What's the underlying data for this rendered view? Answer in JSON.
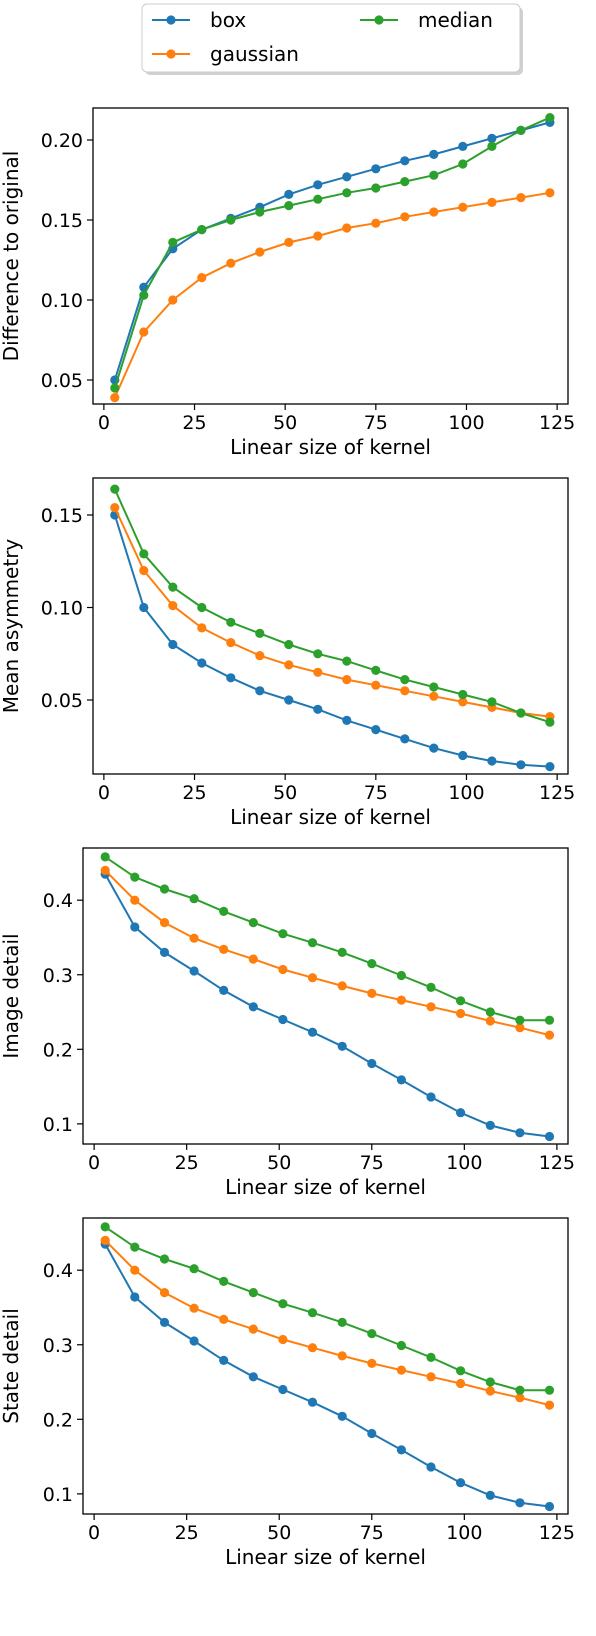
{
  "legend": {
    "placement": "top-center",
    "entries": [
      "box",
      "gaussian",
      "median"
    ]
  },
  "colors": {
    "box": "#1f77b4",
    "gaussian": "#ff7f0e",
    "median": "#2ca02c"
  },
  "chart_data": [
    {
      "type": "line",
      "xlabel": "Linear size of kernel",
      "ylabel": "Difference to original",
      "xlim": [
        -3,
        128
      ],
      "ylim": [
        0.035,
        0.22
      ],
      "xticks": [
        0,
        25,
        50,
        75,
        100,
        125
      ],
      "yticks": [
        0.05,
        0.1,
        0.15,
        0.2
      ],
      "ytick_labels": [
        "0.05",
        "0.10",
        "0.15",
        "0.20"
      ],
      "x": [
        3,
        11,
        19,
        27,
        35,
        43,
        51,
        59,
        67,
        75,
        83,
        91,
        99,
        107,
        115,
        123
      ],
      "series": [
        {
          "name": "box",
          "values": [
            0.05,
            0.108,
            0.132,
            0.144,
            0.151,
            0.158,
            0.166,
            0.172,
            0.177,
            0.182,
            0.187,
            0.191,
            0.196,
            0.201,
            0.206,
            0.211
          ]
        },
        {
          "name": "gaussian",
          "values": [
            0.039,
            0.08,
            0.1,
            0.114,
            0.123,
            0.13,
            0.136,
            0.14,
            0.145,
            0.148,
            0.152,
            0.155,
            0.158,
            0.161,
            0.164,
            0.167
          ]
        },
        {
          "name": "median",
          "values": [
            0.045,
            0.103,
            0.136,
            0.144,
            0.15,
            0.155,
            0.159,
            0.163,
            0.167,
            0.17,
            0.174,
            0.178,
            0.185,
            0.196,
            0.206,
            0.214
          ]
        }
      ],
      "grid": false
    },
    {
      "type": "line",
      "xlabel": "Linear size of kernel",
      "ylabel": "Mean asymmetry",
      "xlim": [
        -3,
        128
      ],
      "ylim": [
        0.01,
        0.17
      ],
      "xticks": [
        0,
        25,
        50,
        75,
        100,
        125
      ],
      "yticks": [
        0.05,
        0.1,
        0.15
      ],
      "ytick_labels": [
        "0.05",
        "0.10",
        "0.15"
      ],
      "x": [
        3,
        11,
        19,
        27,
        35,
        43,
        51,
        59,
        67,
        75,
        83,
        91,
        99,
        107,
        115,
        123
      ],
      "series": [
        {
          "name": "box",
          "values": [
            0.15,
            0.1,
            0.08,
            0.07,
            0.062,
            0.055,
            0.05,
            0.045,
            0.039,
            0.034,
            0.029,
            0.024,
            0.02,
            0.017,
            0.015,
            0.014
          ]
        },
        {
          "name": "gaussian",
          "values": [
            0.154,
            0.12,
            0.101,
            0.089,
            0.081,
            0.074,
            0.069,
            0.065,
            0.061,
            0.058,
            0.055,
            0.052,
            0.049,
            0.046,
            0.043,
            0.041
          ]
        },
        {
          "name": "median",
          "values": [
            0.164,
            0.129,
            0.111,
            0.1,
            0.092,
            0.086,
            0.08,
            0.075,
            0.071,
            0.066,
            0.061,
            0.057,
            0.053,
            0.049,
            0.043,
            0.038
          ]
        }
      ],
      "grid": false
    },
    {
      "type": "line",
      "xlabel": "Linear size of kernel",
      "ylabel": "Image detail",
      "xlim": [
        -3,
        128
      ],
      "ylim": [
        0.073,
        0.47
      ],
      "xticks": [
        0,
        25,
        50,
        75,
        100,
        125
      ],
      "yticks": [
        0.1,
        0.2,
        0.3,
        0.4
      ],
      "ytick_labels": [
        "0.1",
        "0.2",
        "0.3",
        "0.4"
      ],
      "x": [
        3,
        11,
        19,
        27,
        35,
        43,
        51,
        59,
        67,
        75,
        83,
        91,
        99,
        107,
        115,
        123
      ],
      "series": [
        {
          "name": "box",
          "values": [
            0.435,
            0.364,
            0.33,
            0.305,
            0.279,
            0.257,
            0.24,
            0.223,
            0.204,
            0.181,
            0.159,
            0.136,
            0.115,
            0.098,
            0.088,
            0.083
          ]
        },
        {
          "name": "gaussian",
          "values": [
            0.44,
            0.4,
            0.37,
            0.349,
            0.334,
            0.321,
            0.307,
            0.296,
            0.285,
            0.275,
            0.266,
            0.257,
            0.248,
            0.238,
            0.229,
            0.219
          ]
        },
        {
          "name": "median",
          "values": [
            0.458,
            0.431,
            0.415,
            0.402,
            0.385,
            0.37,
            0.355,
            0.343,
            0.33,
            0.315,
            0.299,
            0.283,
            0.265,
            0.25,
            0.239,
            0.239
          ]
        }
      ],
      "grid": false
    },
    {
      "type": "line",
      "xlabel": "Linear size of kernel",
      "ylabel": "State detail",
      "xlim": [
        -3,
        128
      ],
      "ylim": [
        0.073,
        0.47
      ],
      "xticks": [
        0,
        25,
        50,
        75,
        100,
        125
      ],
      "yticks": [
        0.1,
        0.2,
        0.3,
        0.4
      ],
      "ytick_labels": [
        "0.1",
        "0.2",
        "0.3",
        "0.4"
      ],
      "x": [
        3,
        11,
        19,
        27,
        35,
        43,
        51,
        59,
        67,
        75,
        83,
        91,
        99,
        107,
        115,
        123
      ],
      "series": [
        {
          "name": "box",
          "values": [
            0.435,
            0.364,
            0.33,
            0.305,
            0.279,
            0.257,
            0.24,
            0.223,
            0.204,
            0.181,
            0.159,
            0.136,
            0.115,
            0.098,
            0.088,
            0.083
          ]
        },
        {
          "name": "gaussian",
          "values": [
            0.44,
            0.4,
            0.37,
            0.349,
            0.334,
            0.321,
            0.307,
            0.296,
            0.285,
            0.275,
            0.266,
            0.257,
            0.248,
            0.238,
            0.229,
            0.219
          ]
        },
        {
          "name": "median",
          "values": [
            0.458,
            0.431,
            0.415,
            0.402,
            0.385,
            0.37,
            0.355,
            0.343,
            0.33,
            0.315,
            0.299,
            0.283,
            0.265,
            0.25,
            0.239,
            0.239
          ]
        }
      ],
      "grid": false
    }
  ]
}
